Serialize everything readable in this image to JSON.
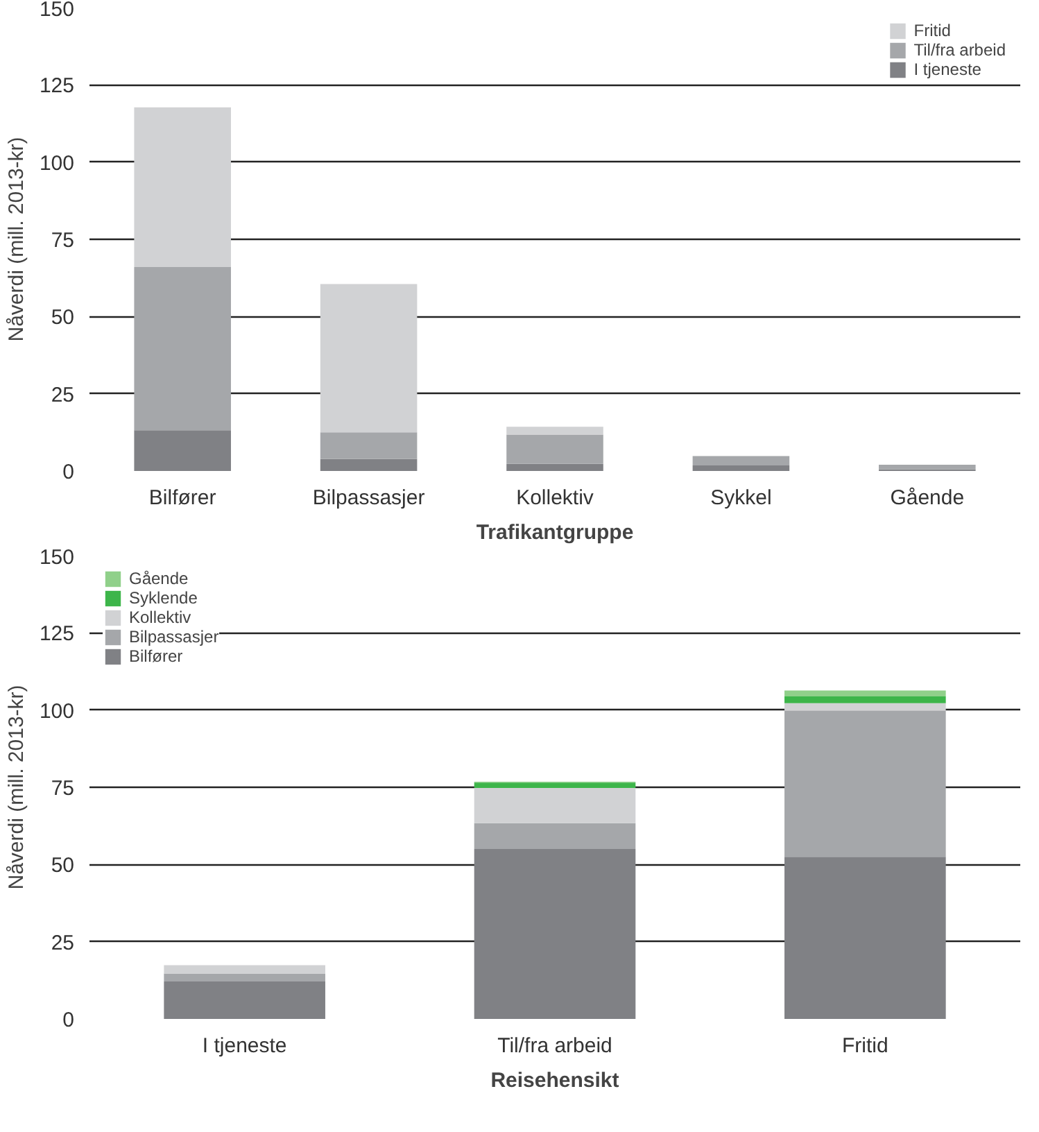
{
  "chart_data": [
    {
      "type": "bar",
      "stacked": true,
      "categories": [
        "Bilfører",
        "Bilpassasjer",
        "Kollektiv",
        "Sykkel",
        "Gående"
      ],
      "xlabel": "Trafikantgruppe",
      "ylabel": "Nåverdi (mill. 2013-kr)",
      "ylim": [
        0,
        150
      ],
      "yticks": [
        0,
        25,
        50,
        75,
        100,
        125,
        150
      ],
      "grid": "y",
      "legend": "top right",
      "series": [
        {
          "name": "I tjeneste",
          "color": "#808185",
          "values": [
            13.2,
            3.9,
            2.3,
            1.8,
            0.5
          ]
        },
        {
          "name": "Til/fra arbeid",
          "color": "#a5a7aa",
          "values": [
            52.8,
            8.6,
            9.5,
            3,
            1.5
          ]
        },
        {
          "name": "Fritid",
          "color": "#d1d2d4",
          "values": [
            51.7,
            48,
            2.5,
            0,
            0
          ]
        }
      ]
    },
    {
      "type": "bar",
      "stacked": true,
      "categories": [
        "I tjeneste",
        "Til/fra arbeid",
        "Fritid"
      ],
      "xlabel": "Reisehensikt",
      "ylabel": "Nåverdi (mill. 2013-kr)",
      "ylim": [
        0,
        150
      ],
      "yticks": [
        0,
        25,
        50,
        75,
        100,
        125,
        150
      ],
      "grid": "y",
      "legend": "top left",
      "series": [
        {
          "name": "Bilfører",
          "color": "#808185",
          "values": [
            12.1,
            55,
            52.5
          ]
        },
        {
          "name": "Bilpassasjer",
          "color": "#a5a7aa",
          "values": [
            2.6,
            8.4,
            47.3
          ]
        },
        {
          "name": "Kollektiv",
          "color": "#d1d2d4",
          "values": [
            2.7,
            11.4,
            2.4
          ]
        },
        {
          "name": "Syklende",
          "color": "#3db54a",
          "values": [
            0,
            1.7,
            2.2
          ]
        },
        {
          "name": "Gående",
          "color": "#90d08a",
          "values": [
            0,
            0.3,
            1.9
          ]
        }
      ]
    }
  ]
}
